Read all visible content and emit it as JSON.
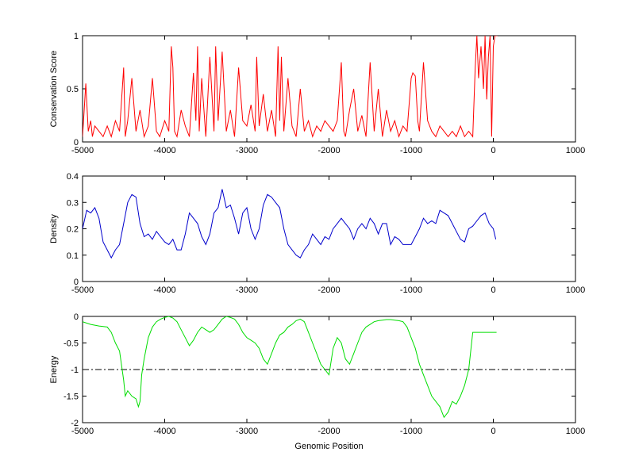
{
  "chart_data": [
    {
      "type": "line",
      "ylabel": "Conservation Score",
      "xlabel": "",
      "xlim": [
        -5000,
        1000
      ],
      "ylim": [
        0,
        1
      ],
      "xticks": [
        "-5000",
        "-4000",
        "-3000",
        "-2000",
        "-1000",
        "0",
        "1000"
      ],
      "yticks": [
        "0",
        "0.5",
        "1"
      ],
      "color": "#ff0000",
      "series": [
        {
          "x": [
            -5000,
            -4960,
            -4930,
            -4900,
            -4880,
            -4850,
            -4800,
            -4750,
            -4700,
            -4650,
            -4600,
            -4550,
            -4500,
            -4480,
            -4450,
            -4400,
            -4350,
            -4300,
            -4250,
            -4200,
            -4150,
            -4100,
            -4060,
            -4000,
            -3950,
            -3920,
            -3900,
            -3880,
            -3850,
            -3800,
            -3750,
            -3700,
            -3650,
            -3620,
            -3600,
            -3580,
            -3550,
            -3500,
            -3450,
            -3400,
            -3380,
            -3350,
            -3300,
            -3250,
            -3200,
            -3150,
            -3100,
            -3050,
            -3000,
            -2950,
            -2900,
            -2880,
            -2850,
            -2800,
            -2750,
            -2700,
            -2650,
            -2620,
            -2600,
            -2580,
            -2550,
            -2500,
            -2450,
            -2400,
            -2350,
            -2300,
            -2250,
            -2200,
            -2150,
            -2100,
            -2050,
            -2000,
            -1950,
            -1900,
            -1850,
            -1820,
            -1800,
            -1750,
            -1700,
            -1650,
            -1600,
            -1550,
            -1500,
            -1450,
            -1400,
            -1350,
            -1300,
            -1250,
            -1200,
            -1150,
            -1100,
            -1050,
            -1000,
            -980,
            -950,
            -920,
            -900,
            -850,
            -800,
            -750,
            -700,
            -650,
            -600,
            -550,
            -500,
            -450,
            -400,
            -350,
            -300,
            -250,
            -220,
            -200,
            -180,
            -150,
            -120,
            -100,
            -80,
            -60,
            -40,
            -20,
            0,
            20,
            50
          ],
          "y": [
            0.05,
            0.55,
            0.1,
            0.2,
            0.05,
            0.15,
            0.1,
            0.05,
            0.15,
            0.05,
            0.2,
            0.1,
            0.7,
            0.05,
            0.2,
            0.6,
            0.1,
            0.3,
            0.05,
            0.15,
            0.6,
            0.1,
            0.05,
            0.2,
            0.1,
            0.9,
            0.7,
            0.1,
            0.05,
            0.3,
            0.15,
            0.05,
            0.65,
            0.2,
            0.9,
            0.1,
            0.6,
            0.05,
            0.8,
            0.1,
            0.9,
            0.2,
            0.85,
            0.1,
            0.3,
            0.05,
            0.7,
            0.2,
            0.15,
            0.35,
            0.1,
            0.8,
            0.15,
            0.45,
            0.1,
            0.3,
            0.05,
            0.9,
            0.2,
            0.8,
            0.1,
            0.6,
            0.15,
            0.05,
            0.5,
            0.1,
            0.2,
            0.05,
            0.15,
            0.1,
            0.2,
            0.15,
            0.1,
            0.2,
            0.75,
            0.1,
            0.05,
            0.3,
            0.5,
            0.1,
            0.25,
            0.05,
            0.75,
            0.1,
            0.5,
            0.05,
            0.3,
            0.1,
            0.2,
            0.05,
            0.15,
            0.1,
            0.6,
            0.65,
            0.62,
            0.2,
            0.1,
            0.75,
            0.2,
            0.1,
            0.05,
            0.15,
            0.1,
            0.05,
            0.1,
            0.05,
            0.15,
            0.05,
            0.1,
            0.05,
            0.7,
            1.0,
            0.6,
            0.9,
            0.5,
            1.0,
            0.4,
            0.8,
            1.0,
            0.05,
            0.9,
            1.0,
            1.0
          ]
        }
      ]
    },
    {
      "type": "line",
      "ylabel": "Density",
      "xlabel": "",
      "xlim": [
        -5000,
        1000
      ],
      "ylim": [
        0,
        0.4
      ],
      "xticks": [
        "-5000",
        "-4000",
        "-3000",
        "-2000",
        "-1000",
        "0",
        "1000"
      ],
      "yticks": [
        "0",
        "0.1",
        "0.2",
        "0.3",
        "0.4"
      ],
      "color": "#0000cc",
      "series": [
        {
          "x": [
            -5000,
            -4950,
            -4900,
            -4850,
            -4800,
            -4750,
            -4700,
            -4650,
            -4600,
            -4550,
            -4500,
            -4450,
            -4400,
            -4350,
            -4300,
            -4250,
            -4200,
            -4150,
            -4100,
            -4050,
            -4000,
            -3950,
            -3900,
            -3850,
            -3800,
            -3750,
            -3700,
            -3650,
            -3600,
            -3550,
            -3500,
            -3450,
            -3400,
            -3350,
            -3300,
            -3250,
            -3200,
            -3150,
            -3100,
            -3050,
            -3000,
            -2950,
            -2900,
            -2850,
            -2800,
            -2750,
            -2700,
            -2650,
            -2600,
            -2550,
            -2500,
            -2450,
            -2400,
            -2350,
            -2300,
            -2250,
            -2200,
            -2150,
            -2100,
            -2050,
            -2000,
            -1950,
            -1900,
            -1850,
            -1800,
            -1750,
            -1700,
            -1650,
            -1600,
            -1550,
            -1500,
            -1450,
            -1400,
            -1350,
            -1300,
            -1250,
            -1200,
            -1150,
            -1100,
            -1050,
            -1000,
            -950,
            -900,
            -850,
            -800,
            -750,
            -700,
            -650,
            -600,
            -550,
            -500,
            -450,
            -400,
            -350,
            -300,
            -250,
            -200,
            -150,
            -100,
            -50,
            0,
            30
          ],
          "y": [
            0.2,
            0.27,
            0.26,
            0.28,
            0.24,
            0.15,
            0.12,
            0.09,
            0.12,
            0.14,
            0.22,
            0.3,
            0.33,
            0.32,
            0.22,
            0.17,
            0.18,
            0.16,
            0.19,
            0.17,
            0.15,
            0.14,
            0.16,
            0.12,
            0.12,
            0.18,
            0.26,
            0.24,
            0.22,
            0.17,
            0.14,
            0.18,
            0.26,
            0.28,
            0.35,
            0.28,
            0.29,
            0.24,
            0.18,
            0.26,
            0.28,
            0.2,
            0.16,
            0.2,
            0.29,
            0.33,
            0.32,
            0.3,
            0.28,
            0.2,
            0.14,
            0.12,
            0.1,
            0.09,
            0.12,
            0.14,
            0.18,
            0.16,
            0.14,
            0.17,
            0.16,
            0.2,
            0.22,
            0.24,
            0.22,
            0.2,
            0.16,
            0.2,
            0.22,
            0.2,
            0.24,
            0.22,
            0.18,
            0.22,
            0.22,
            0.14,
            0.17,
            0.16,
            0.14,
            0.14,
            0.14,
            0.17,
            0.2,
            0.24,
            0.22,
            0.23,
            0.22,
            0.27,
            0.26,
            0.25,
            0.22,
            0.19,
            0.16,
            0.15,
            0.2,
            0.21,
            0.23,
            0.25,
            0.26,
            0.22,
            0.2,
            0.16
          ]
        }
      ]
    },
    {
      "type": "line",
      "ylabel": "Energy",
      "xlabel": "Genomic Position",
      "xlim": [
        -5000,
        1000
      ],
      "ylim": [
        -2,
        0
      ],
      "xticks": [
        "-5000",
        "-4000",
        "-3000",
        "-2000",
        "-1000",
        "0",
        "1000"
      ],
      "yticks": [
        "-2",
        "-1.5",
        "-1",
        "-0.5",
        "0"
      ],
      "color": "#00dd00",
      "reference_line": {
        "y": -1,
        "style": "dash-dot",
        "color": "#000000"
      },
      "series": [
        {
          "x": [
            -5000,
            -4900,
            -4800,
            -4700,
            -4650,
            -4600,
            -4550,
            -4500,
            -4480,
            -4450,
            -4400,
            -4350,
            -4320,
            -4300,
            -4280,
            -4250,
            -4200,
            -4150,
            -4100,
            -4050,
            -4000,
            -3950,
            -3900,
            -3850,
            -3800,
            -3750,
            -3700,
            -3650,
            -3600,
            -3550,
            -3500,
            -3450,
            -3400,
            -3350,
            -3300,
            -3250,
            -3200,
            -3150,
            -3100,
            -3050,
            -3000,
            -2950,
            -2900,
            -2850,
            -2800,
            -2750,
            -2700,
            -2650,
            -2600,
            -2550,
            -2500,
            -2450,
            -2400,
            -2350,
            -2300,
            -2250,
            -2200,
            -2150,
            -2100,
            -2050,
            -2000,
            -1950,
            -1900,
            -1850,
            -1800,
            -1750,
            -1700,
            -1650,
            -1600,
            -1550,
            -1500,
            -1450,
            -1400,
            -1350,
            -1300,
            -1250,
            -1200,
            -1150,
            -1100,
            -1050,
            -1000,
            -950,
            -900,
            -850,
            -800,
            -750,
            -700,
            -650,
            -600,
            -550,
            -500,
            -450,
            -400,
            -350,
            -300,
            -250,
            -200,
            -180,
            -150,
            -120,
            -100,
            -80,
            -50,
            -20,
            0,
            30,
            40
          ],
          "y": [
            -0.1,
            -0.15,
            -0.18,
            -0.2,
            -0.3,
            -0.5,
            -0.65,
            -1.2,
            -1.5,
            -1.4,
            -1.5,
            -1.55,
            -1.7,
            -1.6,
            -1.1,
            -0.8,
            -0.4,
            -0.2,
            -0.1,
            -0.05,
            -0.02,
            0,
            -0.03,
            -0.1,
            -0.25,
            -0.4,
            -0.55,
            -0.45,
            -0.3,
            -0.2,
            -0.25,
            -0.3,
            -0.25,
            -0.15,
            -0.05,
            0,
            -0.02,
            -0.05,
            -0.15,
            -0.3,
            -0.4,
            -0.45,
            -0.5,
            -0.6,
            -0.8,
            -0.9,
            -0.7,
            -0.5,
            -0.35,
            -0.3,
            -0.2,
            -0.15,
            -0.08,
            -0.05,
            -0.1,
            -0.3,
            -0.5,
            -0.7,
            -0.9,
            -1.0,
            -1.1,
            -0.6,
            -0.4,
            -0.5,
            -0.8,
            -0.9,
            -0.7,
            -0.5,
            -0.3,
            -0.2,
            -0.15,
            -0.1,
            -0.08,
            -0.07,
            -0.06,
            -0.06,
            -0.07,
            -0.08,
            -0.1,
            -0.2,
            -0.4,
            -0.6,
            -0.9,
            -1.1,
            -1.3,
            -1.5,
            -1.6,
            -1.7,
            -1.9,
            -1.8,
            -1.6,
            -1.65,
            -1.5,
            -1.3,
            -1.0,
            -0.3,
            -0.3,
            -0.3,
            -0.3,
            -0.3,
            -0.3,
            -0.3,
            -0.3,
            -0.3,
            -0.3,
            -0.3,
            -0.3
          ]
        }
      ]
    }
  ]
}
